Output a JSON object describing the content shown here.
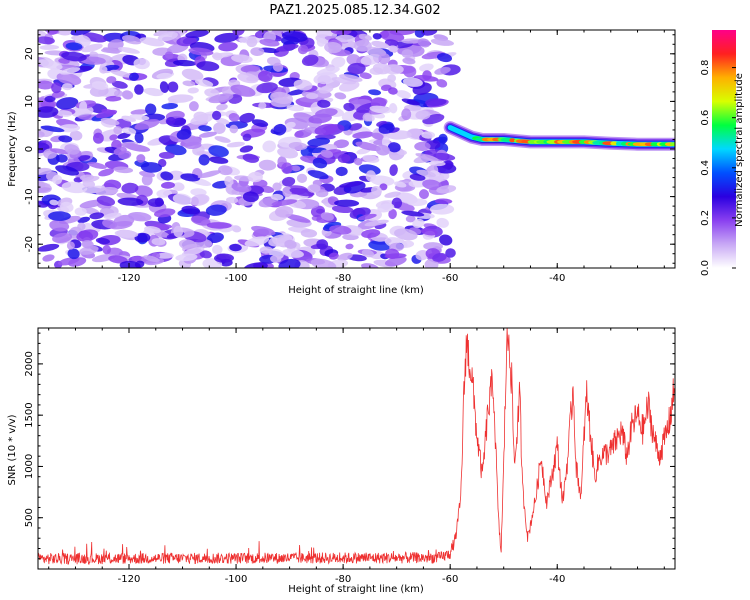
{
  "figure": {
    "title": "PAZ1.2025.085.12.34.G02"
  },
  "chart_data": [
    {
      "type": "heatmap",
      "title": "PAZ1.2025.085.12.34.G02",
      "xlabel": "Height of straight line (km)",
      "ylabel": "Frequency (Hz)",
      "xlim": [
        -137,
        -18
      ],
      "ylim": [
        -25,
        25
      ],
      "x_ticks": [
        -120,
        -100,
        -80,
        -60,
        -40
      ],
      "y_ticks": [
        -20,
        -10,
        0,
        10,
        20
      ],
      "colorbar": {
        "label": "Normalized spectral amplitude",
        "range": [
          0,
          0.95
        ],
        "ticks": [
          0.0,
          0.2,
          0.4,
          0.6,
          0.8
        ],
        "colormap": [
          "#ffffff",
          "#c8a8f5",
          "#8a40f0",
          "#2a00e0",
          "#0050ff",
          "#00d8ff",
          "#00ff40",
          "#d8ff00",
          "#ffb000",
          "#ff2020",
          "#ff0088"
        ]
      },
      "features": {
        "noise_region_x": [
          -137,
          -61
        ],
        "signal_onset_x": -60,
        "signal_track": [
          {
            "x": -60,
            "y": 4.5
          },
          {
            "x": -58,
            "y": 3.5
          },
          {
            "x": -56,
            "y": 2.5
          },
          {
            "x": -54,
            "y": 2.0
          },
          {
            "x": -50,
            "y": 2.0
          },
          {
            "x": -45,
            "y": 1.5
          },
          {
            "x": -40,
            "y": 1.5
          },
          {
            "x": -35,
            "y": 1.5
          },
          {
            "x": -30,
            "y": 1.2
          },
          {
            "x": -25,
            "y": 1.0
          },
          {
            "x": -18,
            "y": 1.0
          }
        ],
        "track_peak_amplitude": 0.9
      }
    },
    {
      "type": "line",
      "xlabel": "Height of straight line (km)",
      "ylabel": "SNR (10 * v/v)",
      "xlim": [
        -137,
        -18
      ],
      "ylim": [
        0,
        2350
      ],
      "x_ticks": [
        -120,
        -100,
        -80,
        -60,
        -40
      ],
      "y_ticks": [
        500,
        1000,
        1500,
        2000
      ],
      "color": "#ee3030",
      "envelope_points": [
        {
          "x": -137,
          "y": 100
        },
        {
          "x": -62,
          "y": 110
        },
        {
          "x": -60,
          "y": 150
        },
        {
          "x": -59,
          "y": 300
        },
        {
          "x": -58,
          "y": 700
        },
        {
          "x": -57.5,
          "y": 1600
        },
        {
          "x": -57,
          "y": 2220
        },
        {
          "x": -56,
          "y": 1900
        },
        {
          "x": -55,
          "y": 1300
        },
        {
          "x": -54,
          "y": 900
        },
        {
          "x": -53,
          "y": 1500
        },
        {
          "x": -52,
          "y": 1850
        },
        {
          "x": -51.5,
          "y": 1200
        },
        {
          "x": -51,
          "y": 500
        },
        {
          "x": -50.5,
          "y": 150
        },
        {
          "x": -50,
          "y": 1000
        },
        {
          "x": -49.5,
          "y": 2100
        },
        {
          "x": -49,
          "y": 2300
        },
        {
          "x": -48.5,
          "y": 1800
        },
        {
          "x": -48,
          "y": 1000
        },
        {
          "x": -47,
          "y": 1700
        },
        {
          "x": -46.5,
          "y": 800
        },
        {
          "x": -45.5,
          "y": 300
        },
        {
          "x": -44,
          "y": 700
        },
        {
          "x": -43,
          "y": 1100
        },
        {
          "x": -42,
          "y": 650
        },
        {
          "x": -41,
          "y": 900
        },
        {
          "x": -40,
          "y": 1200
        },
        {
          "x": -39,
          "y": 650
        },
        {
          "x": -38,
          "y": 1100
        },
        {
          "x": -37,
          "y": 1800
        },
        {
          "x": -36.5,
          "y": 1000
        },
        {
          "x": -35.5,
          "y": 700
        },
        {
          "x": -35,
          "y": 1300
        },
        {
          "x": -34.5,
          "y": 1700
        },
        {
          "x": -33,
          "y": 900
        },
        {
          "x": -32,
          "y": 1100
        },
        {
          "x": -30,
          "y": 1150
        },
        {
          "x": -28,
          "y": 1350
        },
        {
          "x": -27,
          "y": 1100
        },
        {
          "x": -26,
          "y": 1400
        },
        {
          "x": -25,
          "y": 1500
        },
        {
          "x": -24,
          "y": 1350
        },
        {
          "x": -23,
          "y": 1600
        },
        {
          "x": -22,
          "y": 1300
        },
        {
          "x": -21,
          "y": 1100
        },
        {
          "x": -20,
          "y": 1250
        },
        {
          "x": -19,
          "y": 1450
        },
        {
          "x": -18,
          "y": 1800
        }
      ]
    }
  ]
}
